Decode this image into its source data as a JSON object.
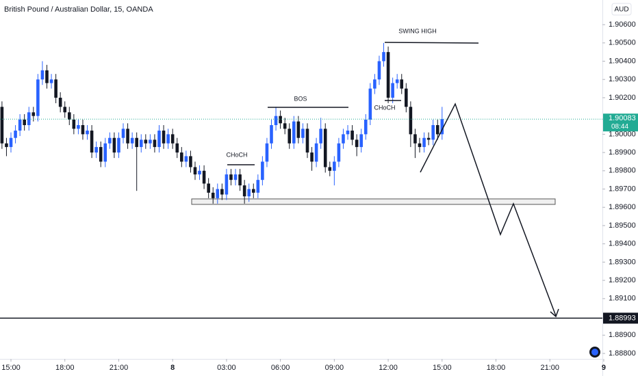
{
  "chart_data": {
    "type": "candlestick",
    "title": "British Pound / Australian Dollar, 15, OANDA",
    "currency": "AUD",
    "up_color": "#2962ff",
    "down_color": "#131722",
    "grid": false,
    "xlim": [
      -0.44,
      133.7
    ],
    "ylim": [
      1.8877,
      1.90735
    ],
    "xticks": [
      {
        "value": 2,
        "label": "15:00"
      },
      {
        "value": 14,
        "label": "18:00"
      },
      {
        "value": 26,
        "label": "21:00"
      },
      {
        "value": 38,
        "label": "8"
      },
      {
        "value": 50,
        "label": "03:00"
      },
      {
        "value": 62,
        "label": "06:00"
      },
      {
        "value": 74,
        "label": "09:00"
      },
      {
        "value": 86,
        "label": "12:00"
      },
      {
        "value": 98,
        "label": "15:00"
      },
      {
        "value": 110,
        "label": "18:00"
      },
      {
        "value": 122,
        "label": "21:00"
      },
      {
        "value": 134,
        "label": "9"
      }
    ],
    "yticks": [
      {
        "value": 1.906,
        "label": "1.90600"
      },
      {
        "value": 1.905,
        "label": "1.90500"
      },
      {
        "value": 1.904,
        "label": "1.90400"
      },
      {
        "value": 1.903,
        "label": "1.90300"
      },
      {
        "value": 1.902,
        "label": "1.90200"
      },
      {
        "value": 1.9,
        "label": "1.90000"
      },
      {
        "value": 1.899,
        "label": "1.89900"
      },
      {
        "value": 1.898,
        "label": "1.89800"
      },
      {
        "value": 1.897,
        "label": "1.89700"
      },
      {
        "value": 1.896,
        "label": "1.89600"
      },
      {
        "value": 1.895,
        "label": "1.89500"
      },
      {
        "value": 1.894,
        "label": "1.89400"
      },
      {
        "value": 1.893,
        "label": "1.89300"
      },
      {
        "value": 1.892,
        "label": "1.89200"
      },
      {
        "value": 1.891,
        "label": "1.89100"
      },
      {
        "value": 1.889,
        "label": "1.88900"
      },
      {
        "value": 1.888,
        "label": "1.88800"
      }
    ],
    "current_price": 1.90083,
    "countdown": "08:44",
    "current_color": "#22ab94",
    "level": 1.88993,
    "level_color": "#131722",
    "zone": {
      "top": 1.89646,
      "bottom": 1.89616
    },
    "annotations": [
      "SWING HIGH",
      "BOS",
      "CHoCH",
      "CHoCH"
    ],
    "ohlc": [
      [
        1.9015,
        1.9018,
        1.8992,
        1.8995
      ],
      [
        1.8995,
        1.8998,
        1.8988,
        1.8993
      ],
      [
        1.8993,
        1.9001,
        1.899,
        1.8998
      ],
      [
        1.8998,
        1.9005,
        1.8995,
        1.9002
      ],
      [
        1.9002,
        1.9011,
        1.8999,
        1.9008
      ],
      [
        1.9008,
        1.9011,
        1.9002,
        1.9005
      ],
      [
        1.9005,
        1.9015,
        1.9002,
        1.9012
      ],
      [
        1.9012,
        1.9015,
        1.9007,
        1.901
      ],
      [
        1.901,
        1.9033,
        1.9007,
        1.903
      ],
      [
        1.903,
        1.904,
        1.9027,
        1.9035
      ],
      [
        1.9035,
        1.9038,
        1.9025,
        1.9028
      ],
      [
        1.9028,
        1.9033,
        1.9025,
        1.903
      ],
      [
        1.903,
        1.9033,
        1.9017,
        1.902
      ],
      [
        1.902,
        1.9023,
        1.9012,
        1.9015
      ],
      [
        1.9015,
        1.9018,
        1.9009,
        1.9012
      ],
      [
        1.9012,
        1.9015,
        1.9005,
        1.9008
      ],
      [
        1.9008,
        1.9011,
        1.9,
        1.9003
      ],
      [
        1.9003,
        1.9008,
        1.9,
        1.9005
      ],
      [
        1.9005,
        1.9008,
        1.8997,
        1.9
      ],
      [
        1.9,
        1.9005,
        1.8997,
        1.9002
      ],
      [
        1.9002,
        1.9005,
        1.8987,
        1.899
      ],
      [
        1.899,
        1.8996,
        1.8987,
        1.8993
      ],
      [
        1.8993,
        1.8996,
        1.8982,
        1.8985
      ],
      [
        1.8985,
        1.8998,
        1.8982,
        1.8995
      ],
      [
        1.8995,
        1.9001,
        1.8992,
        1.8998
      ],
      [
        1.8998,
        1.9001,
        1.8987,
        1.899
      ],
      [
        1.899,
        1.9001,
        1.8987,
        1.8998
      ],
      [
        1.8998,
        1.9006,
        1.8995,
        1.9003
      ],
      [
        1.9003,
        1.9006,
        1.8992,
        1.8995
      ],
      [
        1.8995,
        1.9001,
        1.8992,
        1.8998
      ],
      [
        1.8998,
        1.9001,
        1.8969,
        1.8993
      ],
      [
        1.8993,
        1.9,
        1.899,
        1.8997
      ],
      [
        1.8997,
        1.9,
        1.8992,
        1.8995
      ],
      [
        1.8995,
        1.9,
        1.8992,
        1.8997
      ],
      [
        1.8997,
        1.9,
        1.899,
        1.8993
      ],
      [
        1.8993,
        1.9005,
        1.899,
        1.9002
      ],
      [
        1.9002,
        1.9005,
        1.8992,
        1.8995
      ],
      [
        1.8995,
        1.9003,
        1.8992,
        1.9
      ],
      [
        1.9,
        1.9003,
        1.8992,
        1.8995
      ],
      [
        1.8995,
        1.8998,
        1.8987,
        1.899
      ],
      [
        1.899,
        1.8993,
        1.8982,
        1.8985
      ],
      [
        1.8985,
        1.8991,
        1.8982,
        1.8988
      ],
      [
        1.8988,
        1.8991,
        1.8979,
        1.8982
      ],
      [
        1.8982,
        1.8985,
        1.8975,
        1.8978
      ],
      [
        1.8978,
        1.8983,
        1.8975,
        1.898
      ],
      [
        1.898,
        1.8983,
        1.897,
        1.8973
      ],
      [
        1.8973,
        1.8976,
        1.8965,
        1.8968
      ],
      [
        1.8968,
        1.8971,
        1.8962,
        1.8965
      ],
      [
        1.8965,
        1.8973,
        1.8962,
        1.897
      ],
      [
        1.897,
        1.8973,
        1.8964,
        1.8967
      ],
      [
        1.8967,
        1.8981,
        1.8964,
        1.8978
      ],
      [
        1.8978,
        1.8981,
        1.8972,
        1.8975
      ],
      [
        1.8975,
        1.8981,
        1.8972,
        1.8978
      ],
      [
        1.8978,
        1.8981,
        1.8969,
        1.8972
      ],
      [
        1.8972,
        1.8975,
        1.8962,
        1.8966
      ],
      [
        1.8966,
        1.8973,
        1.8963,
        1.897
      ],
      [
        1.897,
        1.8973,
        1.8965,
        1.8968
      ],
      [
        1.8968,
        1.8978,
        1.8965,
        1.8975
      ],
      [
        1.8975,
        1.8988,
        1.8972,
        1.8985
      ],
      [
        1.8985,
        1.8998,
        1.8982,
        1.8995
      ],
      [
        1.8995,
        1.9008,
        1.8992,
        1.9005
      ],
      [
        1.9005,
        1.9015,
        1.9002,
        1.901
      ],
      [
        1.901,
        1.9013,
        1.9003,
        1.9006
      ],
      [
        1.9006,
        1.9009,
        1.9,
        1.9003
      ],
      [
        1.9003,
        1.9006,
        1.8992,
        1.8995
      ],
      [
        1.8995,
        1.901,
        1.8992,
        1.9007
      ],
      [
        1.9007,
        1.901,
        1.8995,
        1.8998
      ],
      [
        1.8998,
        1.9006,
        1.8995,
        1.9003
      ],
      [
        1.9003,
        1.9006,
        1.8987,
        1.899
      ],
      [
        1.899,
        1.8993,
        1.898,
        1.8985
      ],
      [
        1.8985,
        1.8998,
        1.8982,
        1.8995
      ],
      [
        1.8995,
        1.9009,
        1.8992,
        1.9003
      ],
      [
        1.9003,
        1.9006,
        1.8979,
        1.8982
      ],
      [
        1.8982,
        1.8985,
        1.8977,
        1.898
      ],
      [
        1.898,
        1.8988,
        1.8972,
        1.8985
      ],
      [
        1.8985,
        1.8998,
        1.8982,
        1.8995
      ],
      [
        1.8995,
        1.9003,
        1.8992,
        1.9
      ],
      [
        1.9,
        1.9005,
        1.8997,
        1.9002
      ],
      [
        1.9002,
        1.9005,
        1.8994,
        1.8997
      ],
      [
        1.8997,
        1.9,
        1.8988,
        1.8993
      ],
      [
        1.8993,
        1.9003,
        1.899,
        1.9
      ],
      [
        1.9,
        1.9011,
        1.8997,
        1.9008
      ],
      [
        1.9008,
        1.9028,
        1.9005,
        1.9025
      ],
      [
        1.9025,
        1.9033,
        1.9022,
        1.903
      ],
      [
        1.903,
        1.9043,
        1.9027,
        1.904
      ],
      [
        1.904,
        1.905,
        1.9037,
        1.9045
      ],
      [
        1.9045,
        1.9048,
        1.9017,
        1.902
      ],
      [
        1.902,
        1.9031,
        1.9017,
        1.9028
      ],
      [
        1.9028,
        1.9033,
        1.9025,
        1.903
      ],
      [
        1.903,
        1.9033,
        1.9022,
        1.9025
      ],
      [
        1.9025,
        1.9028,
        1.9012,
        1.9015
      ],
      [
        1.9015,
        1.9018,
        1.8993,
        1.9
      ],
      [
        1.9,
        1.9003,
        1.8987,
        1.8995
      ],
      [
        1.8995,
        1.8998,
        1.899,
        1.8993
      ],
      [
        1.8993,
        1.9001,
        1.899,
        1.8998
      ],
      [
        1.8998,
        1.9001,
        1.8994,
        1.8997
      ],
      [
        1.8997,
        1.9008,
        1.8994,
        1.9005
      ],
      [
        1.9005,
        1.9008,
        1.8997,
        1.9
      ],
      [
        1.9,
        1.9015,
        1.8997,
        1.90083
      ]
    ]
  }
}
